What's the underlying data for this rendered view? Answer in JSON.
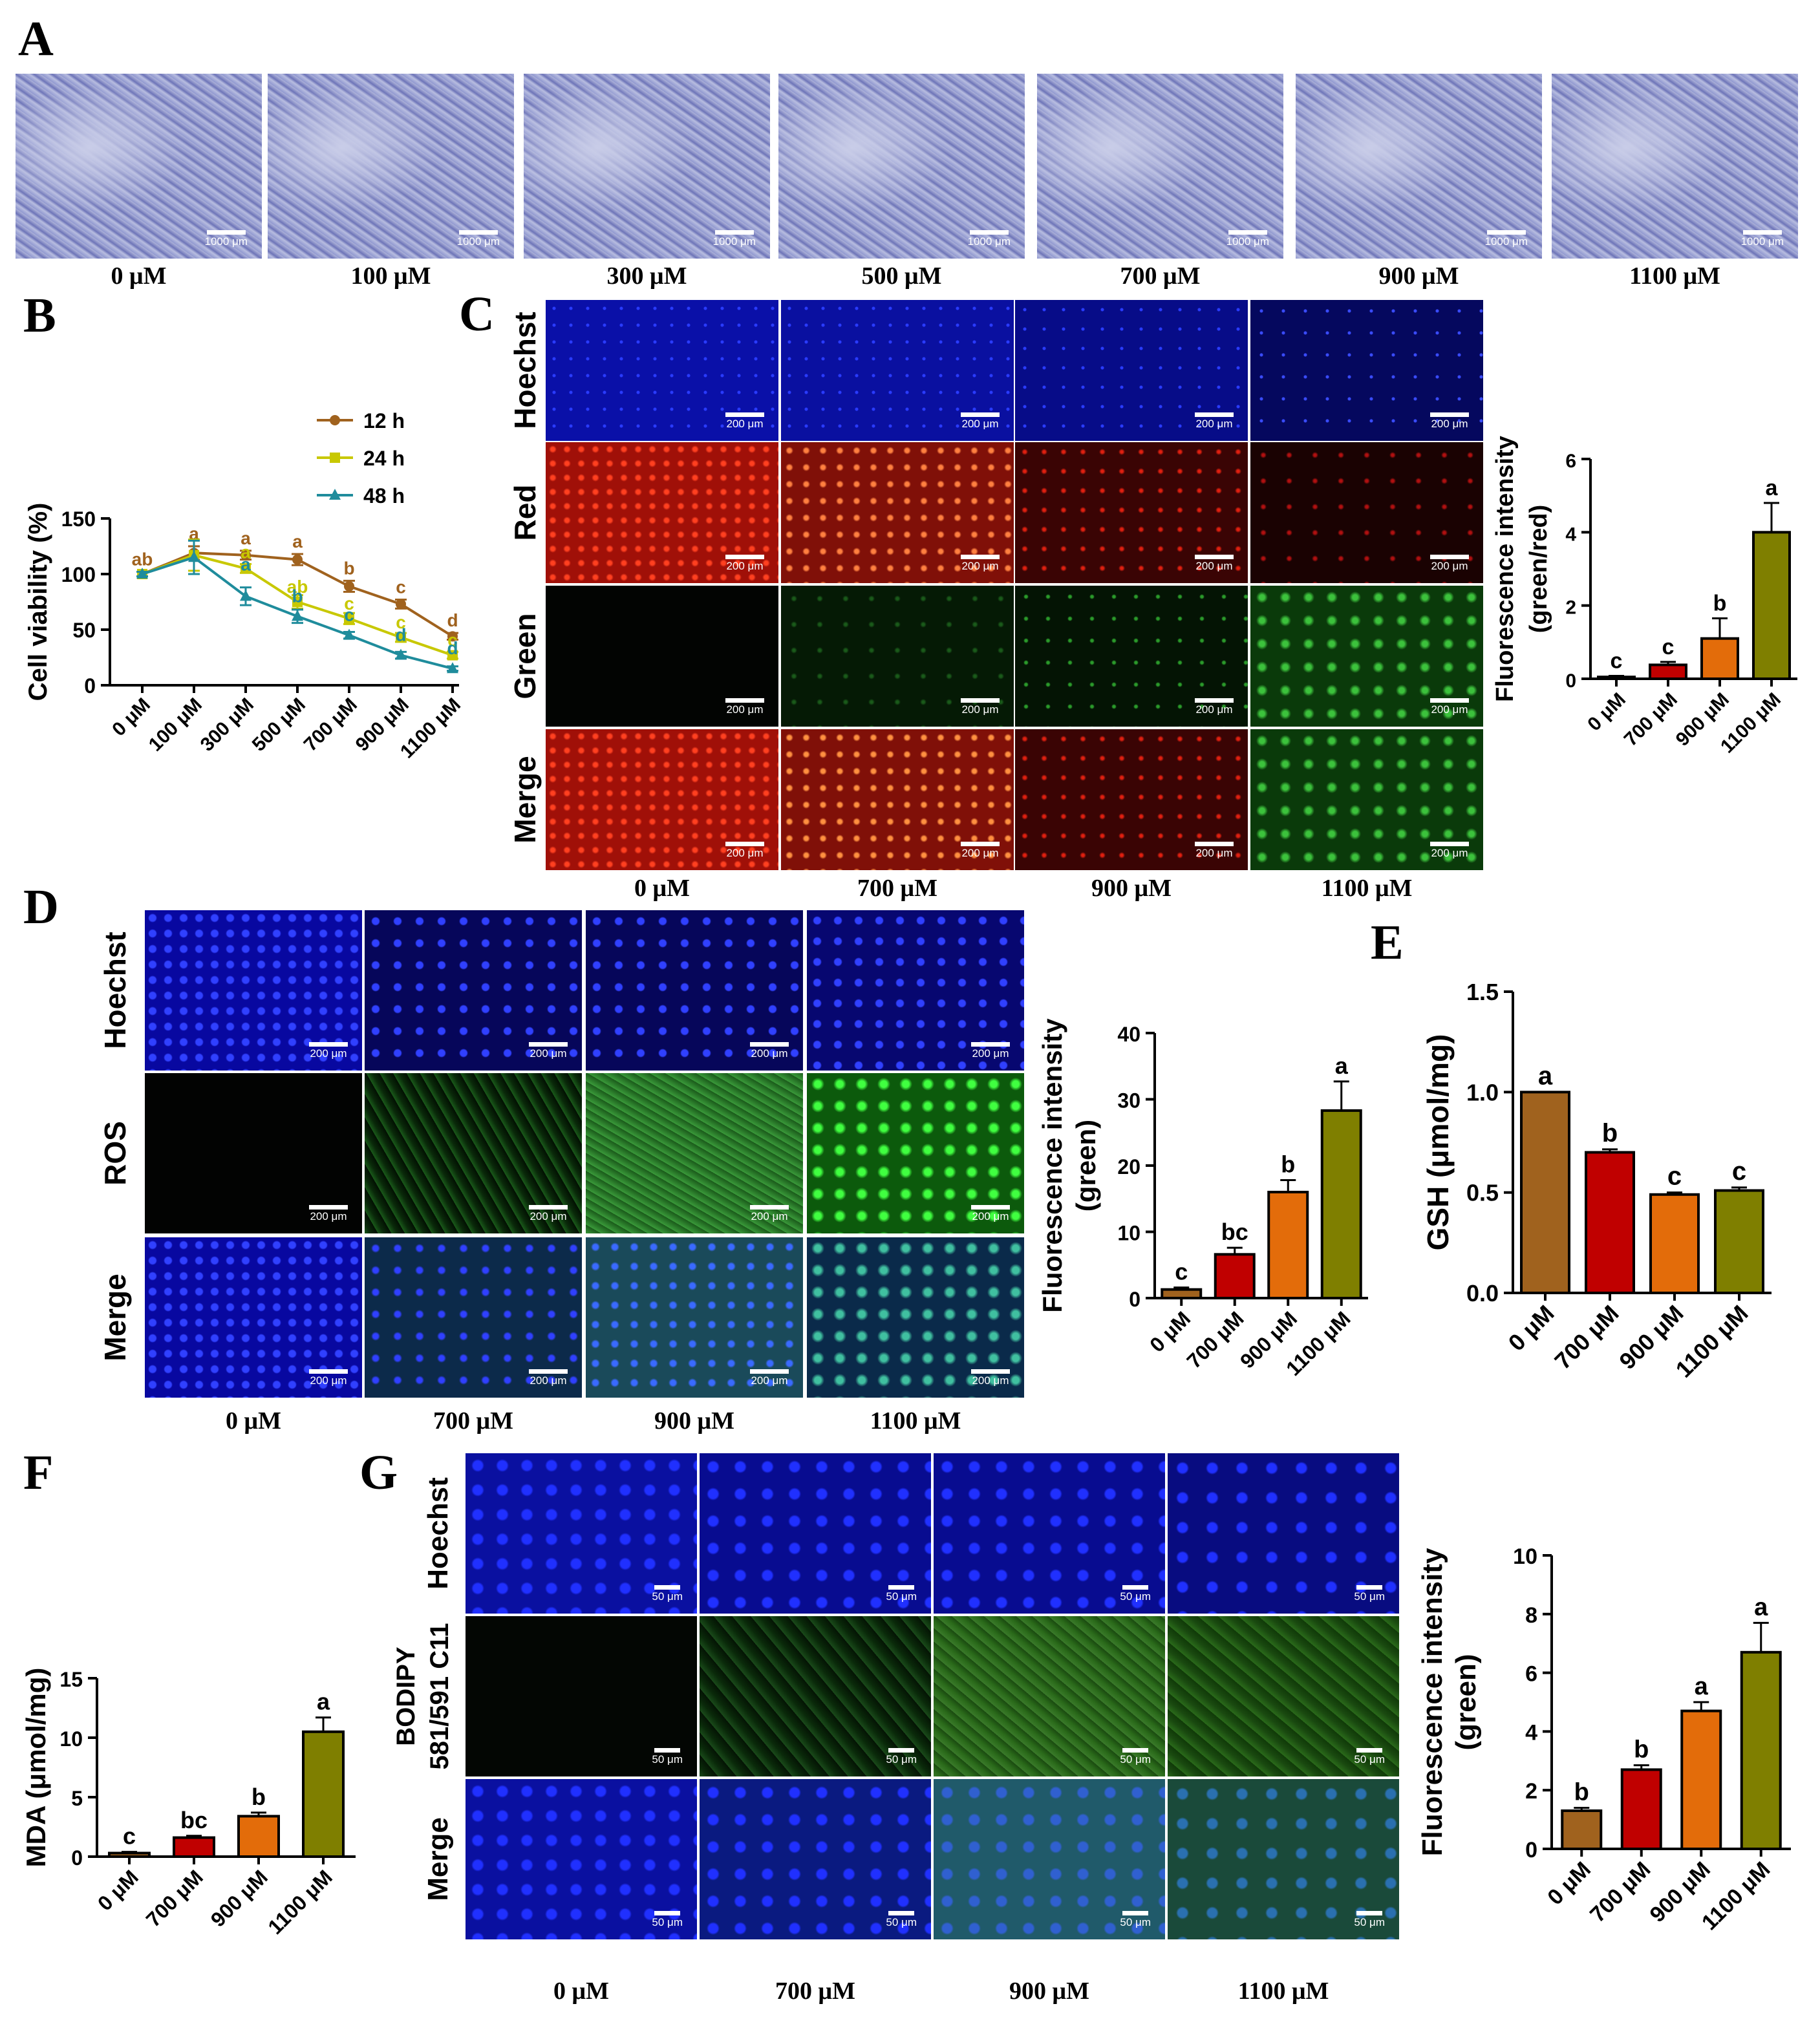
{
  "panels": {
    "A": "A",
    "B": "B",
    "C": "C",
    "D": "D",
    "E": "E",
    "F": "F",
    "G": "G"
  },
  "panel_A": {
    "captions": [
      "0 μM",
      "100 μM",
      "300 μM",
      "500 μM",
      "700 μM",
      "900 μM",
      "1100 μM"
    ],
    "scale": "1000 μm"
  },
  "panel_C": {
    "row_labels": [
      "Hoechst",
      "Red",
      "Green",
      "Merge"
    ],
    "captions": [
      "0  μM",
      "700 μM",
      "900 μM",
      "1100 μM"
    ],
    "scale": "200 μm"
  },
  "panel_D": {
    "row_labels": [
      "Hoechst",
      "ROS",
      "Merge"
    ],
    "captions": [
      "0 μM",
      "700 μM",
      "900 μM",
      "1100 μM"
    ],
    "scale": "200 μm"
  },
  "panel_G": {
    "row_labels": [
      "Hoechst",
      "BODIPY",
      "581/591 C11",
      "Merge"
    ],
    "captions": [
      "0 μM",
      "700 μM",
      "900 μM",
      "1100 μM"
    ],
    "scale": "50 μm"
  },
  "colors": {
    "c0": "#A0621E",
    "c700": "#C00000",
    "c900": "#E36C0A",
    "c1100": "#7F7F00",
    "s12": "#A0621E",
    "s24": "#C8C800",
    "s48": "#1F8C9C"
  },
  "chart_data": [
    {
      "id": "B",
      "type": "line",
      "x": [
        "0 μM",
        "100 μM",
        "300 μM",
        "500 μM",
        "700 μM",
        "900 μM",
        "1100 μM"
      ],
      "ylabel": "Cell viability (%)",
      "ylim": [
        0,
        150
      ],
      "yticks": [
        0,
        50,
        100,
        150
      ],
      "legend": "top-right",
      "series": [
        {
          "name": "12 h",
          "values": [
            100,
            119,
            117,
            113,
            89,
            73,
            44
          ],
          "errors": [
            2,
            6,
            4,
            5,
            5,
            4,
            3
          ],
          "letters": [
            "ab",
            "a",
            "a",
            "a",
            "b",
            "c",
            "d"
          ],
          "color_key": "s12",
          "marker": "circle"
        },
        {
          "name": "24 h",
          "values": [
            100,
            117,
            105,
            75,
            60,
            43,
            27
          ],
          "errors": [
            2,
            14,
            4,
            6,
            5,
            4,
            3
          ],
          "letters": [
            "",
            "",
            "a",
            "ab",
            "c",
            "c",
            "c"
          ],
          "color_key": "s24",
          "marker": "square"
        },
        {
          "name": "48 h",
          "values": [
            100,
            115,
            80,
            62,
            45,
            27,
            15
          ],
          "errors": [
            2,
            15,
            8,
            6,
            3,
            3,
            2
          ],
          "letters": [
            "",
            "",
            "a",
            "b",
            "c",
            "d",
            "d"
          ],
          "color_key": "s48",
          "marker": "triangle"
        }
      ]
    },
    {
      "id": "C",
      "type": "bar",
      "categories": [
        "0 μM",
        "700 μM",
        "900 μM",
        "1100 μM"
      ],
      "values": [
        0.05,
        0.38,
        1.1,
        4.0
      ],
      "errors": [
        0.03,
        0.08,
        0.55,
        0.8
      ],
      "letters": [
        "c",
        "c",
        "b",
        "a"
      ],
      "ylabel": [
        "Fluorescence intensity",
        "(green/red)"
      ],
      "ylim": [
        0,
        6
      ],
      "yticks": [
        0,
        2,
        4,
        6
      ]
    },
    {
      "id": "D",
      "type": "bar",
      "categories": [
        "0 μM",
        "700 μM",
        "900 μM",
        "1100 μM"
      ],
      "values": [
        1.3,
        6.6,
        16.0,
        28.3
      ],
      "errors": [
        0.3,
        1.0,
        1.8,
        4.4
      ],
      "letters": [
        "c",
        "bc",
        "b",
        "a"
      ],
      "ylabel": [
        "Fluorescence intensity",
        "(green)"
      ],
      "ylim": [
        0,
        40
      ],
      "yticks": [
        0,
        10,
        20,
        30,
        40
      ]
    },
    {
      "id": "E",
      "type": "bar",
      "categories": [
        "0 μM",
        "700 μM",
        "900 μM",
        "1100 μM"
      ],
      "values": [
        1.0,
        0.7,
        0.49,
        0.51
      ],
      "errors": [
        0.0,
        0.015,
        0.01,
        0.015
      ],
      "letters": [
        "a",
        "b",
        "c",
        "c"
      ],
      "ylabel": [
        "GSH (μmol/mg)"
      ],
      "ylim": [
        0,
        1.5
      ],
      "yticks": [
        "0.0",
        "0.5",
        "1.0",
        "1.5"
      ]
    },
    {
      "id": "F",
      "type": "bar",
      "categories": [
        "0 μM",
        "700 μM",
        "900 μM",
        "1100 μM"
      ],
      "values": [
        0.3,
        1.6,
        3.4,
        10.5
      ],
      "errors": [
        0.1,
        0.15,
        0.3,
        1.2
      ],
      "letters": [
        "c",
        "bc",
        "b",
        "a"
      ],
      "ylabel": [
        "MDA (μmol/mg)"
      ],
      "ylim": [
        0,
        15
      ],
      "yticks": [
        0,
        5,
        10,
        15
      ]
    },
    {
      "id": "G",
      "type": "bar",
      "categories": [
        "0 μM",
        "700 μM",
        "900 μM",
        "1100 μM"
      ],
      "values": [
        1.3,
        2.7,
        4.7,
        6.7
      ],
      "errors": [
        0.1,
        0.15,
        0.3,
        1.0
      ],
      "letters": [
        "b",
        "b",
        "a",
        "a"
      ],
      "ylabel": [
        "Fluorescence intensity",
        "(green)"
      ],
      "ylim": [
        0,
        10
      ],
      "yticks": [
        0,
        2,
        4,
        6,
        8,
        10
      ]
    }
  ]
}
